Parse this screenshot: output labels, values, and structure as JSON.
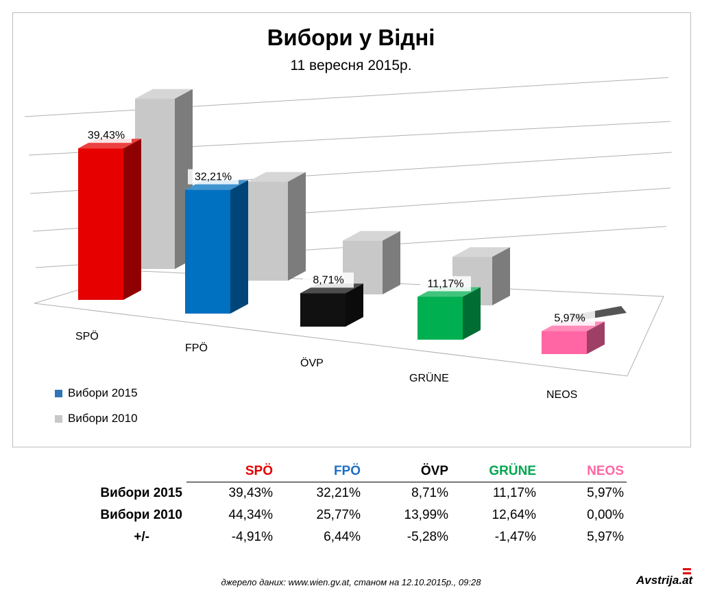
{
  "chart_data": {
    "type": "bar",
    "title": "Вибори у Відні",
    "subtitle": "11 вересня 2015р.",
    "categories": [
      "SPÖ",
      "FPÖ",
      "ÖVP",
      "GRÜNE",
      "NEOS"
    ],
    "series": [
      {
        "name": "Вибори 2015",
        "values": [
          39.43,
          32.21,
          8.71,
          11.17,
          5.97
        ],
        "data_labels": [
          "39,43%",
          "32,21%",
          "8,71%",
          "11,17%",
          "5,97%"
        ]
      },
      {
        "name": "Вибори 2010",
        "values": [
          44.34,
          25.77,
          13.99,
          12.64,
          0.0
        ]
      }
    ],
    "bar_colors_2015": [
      "#e60000",
      "#0070c0",
      "#111111",
      "#00b050",
      "#ff66a3"
    ],
    "color_2010": "#c8c8c8",
    "grid": true,
    "legend_position": "bottom-left"
  },
  "table": {
    "headers": [
      {
        "label": "SPÖ",
        "color": "#e60000"
      },
      {
        "label": "FPÖ",
        "color": "#1f6fc4"
      },
      {
        "label": "ÖVP",
        "color": "#000000"
      },
      {
        "label": "GRÜNE",
        "color": "#00a650"
      },
      {
        "label": "NEOS",
        "color": "#ff66a3"
      }
    ],
    "rows": [
      {
        "label": "Вибори 2015",
        "values": [
          "39,43%",
          "32,21%",
          "8,71%",
          "11,17%",
          "5,97%"
        ]
      },
      {
        "label": "Вибори 2010",
        "values": [
          "44,34%",
          "25,77%",
          "13,99%",
          "12,64%",
          "0,00%"
        ]
      },
      {
        "label": "+/-",
        "values": [
          "-4,91%",
          "6,44%",
          "-5,28%",
          "-1,47%",
          "5,97%"
        ]
      }
    ]
  },
  "source": "джерело даних: www.wien.gv.at, станом на 12.10.2015р., 09:28",
  "logo": "Avstrija.at"
}
